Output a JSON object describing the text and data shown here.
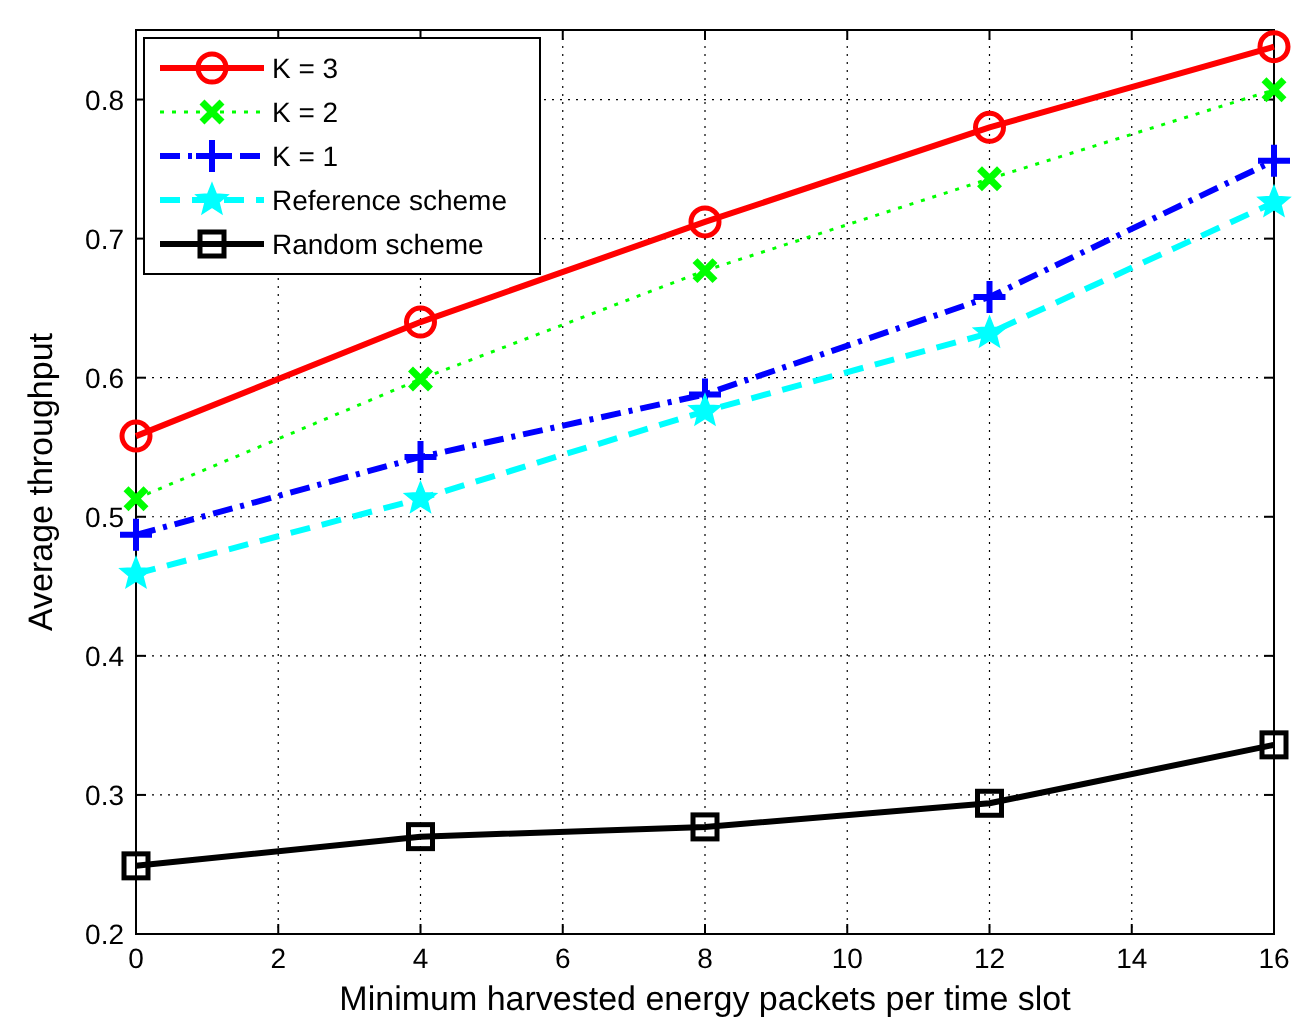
{
  "chart_data": {
    "type": "line",
    "xlabel": "Minimum harvested energy packets per time slot",
    "ylabel": "Average throughput",
    "x": [
      0,
      4,
      8,
      12,
      16
    ],
    "series": [
      {
        "name": "K = 3",
        "color": "#ff0000",
        "marker": "circle",
        "line_style": "solid",
        "values": [
          0.558,
          0.64,
          0.712,
          0.78,
          0.838
        ]
      },
      {
        "name": "K = 2",
        "color": "#00ff00",
        "marker": "cross",
        "line_style": "dotted",
        "values": [
          0.513,
          0.599,
          0.677,
          0.743,
          0.807
        ]
      },
      {
        "name": "K = 1",
        "color": "#0000ff",
        "marker": "plus",
        "line_style": "dashdot",
        "values": [
          0.487,
          0.543,
          0.588,
          0.658,
          0.756
        ]
      },
      {
        "name": "Reference scheme",
        "color": "#00ffff",
        "marker": "star",
        "line_style": "dashed",
        "values": [
          0.459,
          0.513,
          0.576,
          0.632,
          0.726
        ]
      },
      {
        "name": "Random scheme",
        "color": "#000000",
        "marker": "square",
        "line_style": "solid",
        "values": [
          0.249,
          0.27,
          0.277,
          0.294,
          0.336
        ]
      }
    ],
    "xlim": [
      0,
      16
    ],
    "xticks": [
      0,
      2,
      4,
      6,
      8,
      10,
      12,
      14,
      16
    ],
    "ylim": [
      0.2,
      0.85
    ],
    "yticks": [
      0.2,
      0.3,
      0.4,
      0.5,
      0.6,
      0.7,
      0.8
    ],
    "grid": true,
    "legend": "top left"
  }
}
